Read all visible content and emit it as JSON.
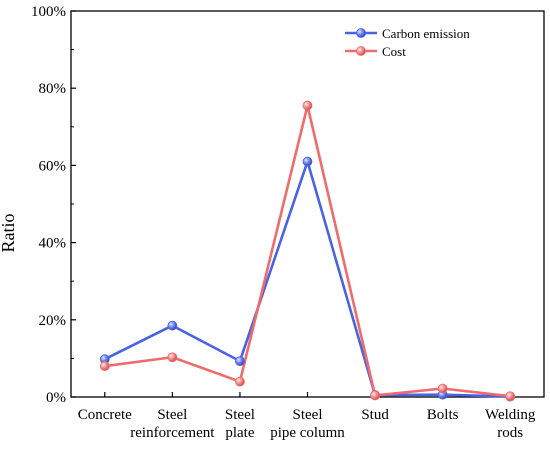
{
  "chart_data": {
    "type": "line",
    "title": "",
    "xlabel": "",
    "ylabel": "Ratio",
    "ylim": [
      0,
      100
    ],
    "y_ticks": [
      "0%",
      "20%",
      "40%",
      "60%",
      "80%",
      "100%"
    ],
    "y_tick_values": [
      0,
      20,
      40,
      60,
      80,
      100
    ],
    "categories": [
      [
        "Concrete"
      ],
      [
        "Steel",
        "reinforcement"
      ],
      [
        "Steel",
        "plate"
      ],
      [
        "Steel",
        "pipe column"
      ],
      [
        "Stud"
      ],
      [
        "Bolts"
      ],
      [
        "Welding",
        "rods"
      ]
    ],
    "series": [
      {
        "name": "Carbon emission",
        "color": "#4a63e6",
        "values": [
          9.8,
          18.5,
          9.3,
          61.0,
          0.5,
          0.6,
          0.1
        ]
      },
      {
        "name": "Cost",
        "color": "#f06b6b",
        "values": [
          8.0,
          10.3,
          4.0,
          75.5,
          0.4,
          2.2,
          0.2
        ]
      }
    ],
    "legend_position": "top-right",
    "grid": false
  }
}
